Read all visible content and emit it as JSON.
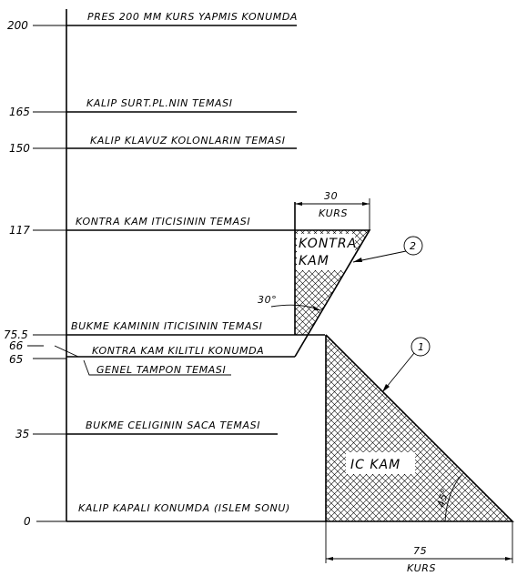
{
  "levels": [
    {
      "value": "200",
      "label": "PRES 200 MM KURS YAPMIS KONUMDA"
    },
    {
      "value": "165",
      "label": "KALIP SURT.PL.NIN TEMASI"
    },
    {
      "value": "150",
      "label": "KALIP KLAVUZ KOLONLARIN TEMASI"
    },
    {
      "value": "117",
      "label": "KONTRA KAM ITICISININ TEMASI"
    },
    {
      "value": "75.5",
      "label": "BUKME KAMININ ITICISININ TEMASI"
    },
    {
      "value": "66",
      "label": "KONTRA KAM KILITLI KONUMDA"
    },
    {
      "value": "65",
      "label": "GENEL TAMPON TEMASI"
    },
    {
      "value": "35",
      "label": "BUKME CELIGININ SACA TEMASI"
    },
    {
      "value": "0",
      "label": "KALIP KAPALI KONUMDA (ISLEM SONU)"
    }
  ],
  "kontra_kam": {
    "label_line1": "KONTRA",
    "label_line2": "KAM",
    "callout": "2",
    "angle": "30°",
    "dim_value": "30",
    "dim_unit": "KURS"
  },
  "ic_kam": {
    "label": "IC KAM",
    "callout": "1",
    "angle": "45°",
    "dim_value": "75",
    "dim_unit": "KURS"
  }
}
